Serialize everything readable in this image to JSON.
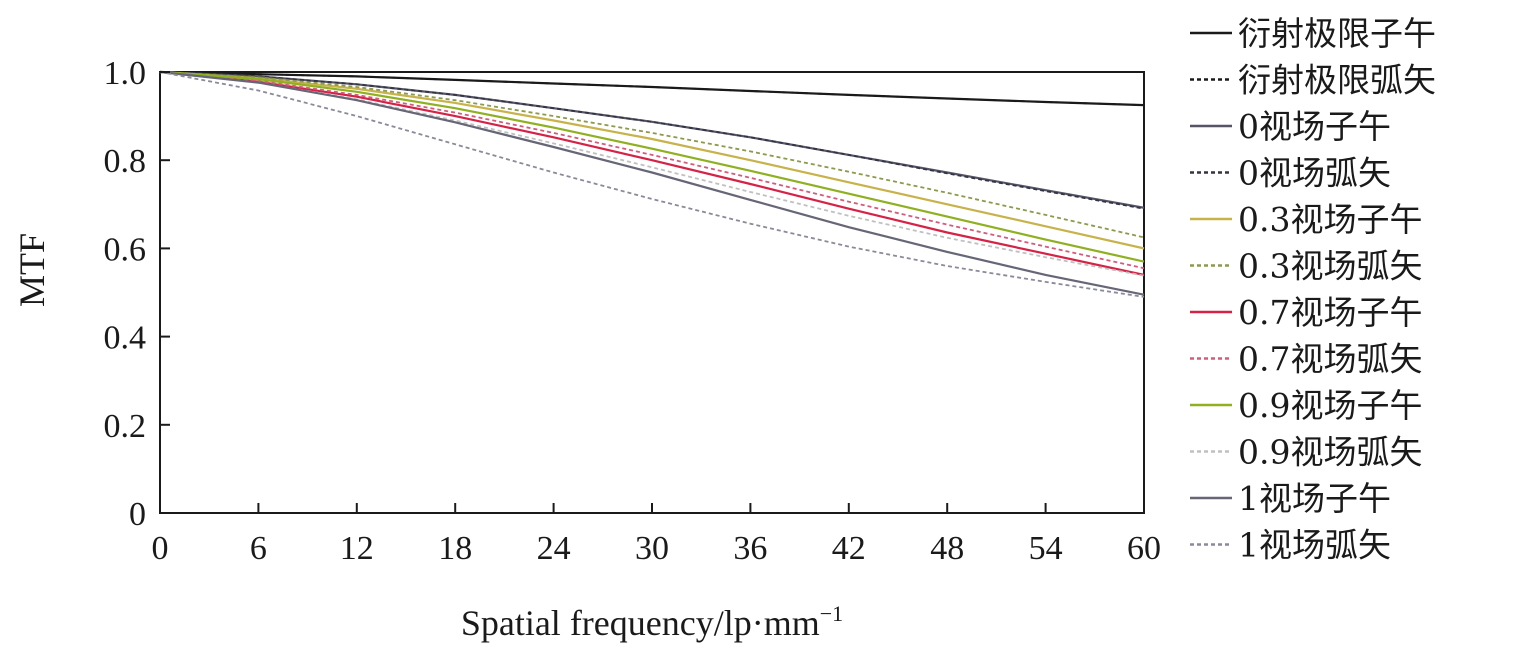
{
  "chart_data": {
    "type": "line",
    "xlabel": "Spatial frequency/lp·mm",
    "xlabel_sup": "−1",
    "ylabel": "MTF",
    "xlim": [
      0,
      60
    ],
    "ylim": [
      0,
      1.0
    ],
    "x_ticks": [
      "0",
      "6",
      "12",
      "18",
      "24",
      "30",
      "36",
      "42",
      "48",
      "54",
      "60"
    ],
    "y_ticks": [
      "0",
      "0.2",
      "0.4",
      "0.6",
      "0.8",
      "1.0"
    ],
    "grid": false,
    "legend_position": "right",
    "x": [
      0,
      6,
      12,
      18,
      24,
      30,
      36,
      42,
      48,
      54,
      60
    ],
    "series": [
      {
        "name": "衍射极限子午",
        "color": "#1a1a1a",
        "dash": "solid",
        "values": [
          1.0,
          0.995,
          0.99,
          0.982,
          0.974,
          0.966,
          0.957,
          0.948,
          0.94,
          0.932,
          0.925
        ]
      },
      {
        "name": "衍射极限弧矢",
        "color": "#1a1a1a",
        "dash": "dashed",
        "values": [
          1.0,
          0.995,
          0.99,
          0.982,
          0.974,
          0.966,
          0.957,
          0.948,
          0.94,
          0.932,
          0.925
        ]
      },
      {
        "name": "0视场子午",
        "color": "#555566",
        "dash": "solid",
        "values": [
          1.0,
          0.99,
          0.972,
          0.948,
          0.918,
          0.887,
          0.852,
          0.812,
          0.772,
          0.732,
          0.692
        ]
      },
      {
        "name": "0视场弧矢",
        "color": "#333344",
        "dash": "dashed",
        "values": [
          1.0,
          0.99,
          0.972,
          0.948,
          0.918,
          0.887,
          0.852,
          0.812,
          0.77,
          0.73,
          0.69
        ]
      },
      {
        "name": "0.3视场子午",
        "color": "#c8b24a",
        "dash": "solid",
        "values": [
          1.0,
          0.986,
          0.962,
          0.93,
          0.89,
          0.848,
          0.8,
          0.75,
          0.7,
          0.65,
          0.6
        ]
      },
      {
        "name": "0.3视场弧矢",
        "color": "#8c9a4a",
        "dash": "dashed",
        "values": [
          1.0,
          0.988,
          0.966,
          0.936,
          0.9,
          0.862,
          0.82,
          0.774,
          0.726,
          0.676,
          0.625
        ]
      },
      {
        "name": "0.7视场子午",
        "color": "#d62246",
        "dash": "solid",
        "values": [
          1.0,
          0.978,
          0.944,
          0.9,
          0.852,
          0.8,
          0.746,
          0.69,
          0.636,
          0.588,
          0.54
        ]
      },
      {
        "name": "0.7视场弧矢",
        "color": "#d65a7a",
        "dash": "dashed",
        "values": [
          1.0,
          0.98,
          0.948,
          0.908,
          0.862,
          0.812,
          0.76,
          0.706,
          0.654,
          0.604,
          0.555
        ]
      },
      {
        "name": "0.9视场子午",
        "color": "#8fb020",
        "dash": "solid",
        "values": [
          1.0,
          0.984,
          0.955,
          0.918,
          0.874,
          0.826,
          0.776,
          0.724,
          0.672,
          0.62,
          0.57
        ]
      },
      {
        "name": "0.9视场弧矢",
        "color": "#c0c0c0",
        "dash": "dashed",
        "values": [
          1.0,
          0.976,
          0.938,
          0.89,
          0.838,
          0.784,
          0.728,
          0.674,
          0.624,
          0.58,
          0.538
        ]
      },
      {
        "name": "1视场子午",
        "color": "#666677",
        "dash": "solid",
        "values": [
          1.0,
          0.976,
          0.936,
          0.886,
          0.83,
          0.772,
          0.71,
          0.648,
          0.592,
          0.54,
          0.495
        ]
      },
      {
        "name": "1视场弧矢",
        "color": "#8a8a9a",
        "dash": "dashed",
        "values": [
          1.0,
          0.958,
          0.9,
          0.836,
          0.772,
          0.712,
          0.656,
          0.604,
          0.56,
          0.524,
          0.49
        ]
      }
    ]
  }
}
